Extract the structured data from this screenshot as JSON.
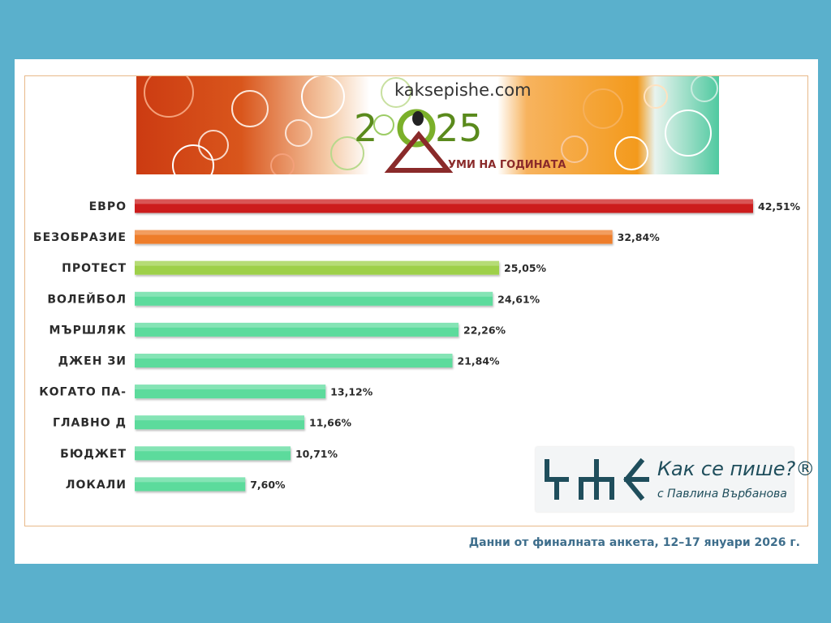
{
  "banner": {
    "site": "kaksepishe.com",
    "year_left": "2",
    "year_right": "25",
    "subtitle": "УМИ НА ГОДИНАТА"
  },
  "chart_data": {
    "type": "bar",
    "orientation": "horizontal",
    "title": "",
    "xlabel": "",
    "ylabel": "",
    "categories": [
      "ЕВРО",
      "БЕЗОБРАЗИЕ",
      "ПРОТЕСТ",
      "ВОЛЕЙБОЛ",
      "МЪРШЛЯК",
      "ДЖЕН ЗИ",
      "КОГАТО ПА-",
      "ГЛАВНО Д",
      "БЮДЖЕТ",
      "ЛОКАЛИ"
    ],
    "values": [
      42.51,
      32.84,
      25.05,
      24.61,
      22.26,
      21.84,
      13.12,
      11.66,
      10.71,
      7.6
    ],
    "value_labels": [
      "42,51%",
      "32,84%",
      "25,05%",
      "24,61%",
      "22,26%",
      "21,84%",
      "13,12%",
      "11,66%",
      "10,71%",
      "7,60%"
    ],
    "bar_colors": [
      "#cc1e1e",
      "#ee7d2a",
      "#9ed04a",
      "#5cdb9c",
      "#5cdb9c",
      "#5cdb9c",
      "#5cdb9c",
      "#5cdb9c",
      "#5cdb9c",
      "#5cdb9c"
    ],
    "xlim": [
      0,
      42.51
    ],
    "grid": false,
    "legend": "none"
  },
  "logo": {
    "title": "Как се пише?®",
    "subtitle": "с Павлина Върбанова"
  },
  "footnote": "Данни от финалната анкета, 12–17 януари 2026 г.",
  "colors": {
    "background": "#5ab0cc",
    "frame": "#e8b98a",
    "footnote": "#3e6e8c",
    "logo_text": "#1f4e5c"
  }
}
